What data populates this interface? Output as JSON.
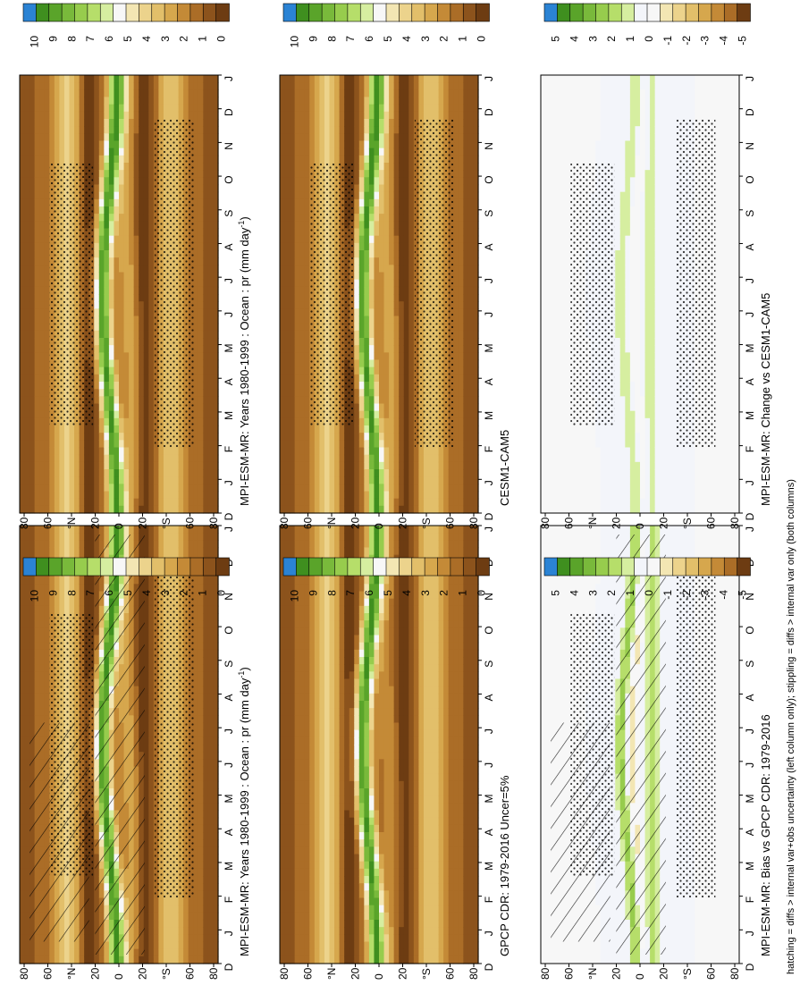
{
  "footnote": "hatching = diffs > internal var+obs uncertainty (left column only); stippling = diffs > internal var only (both columns)",
  "month_ticks": [
    "D",
    "J",
    "F",
    "M",
    "A",
    "M",
    "J",
    "J",
    "A",
    "S",
    "O",
    "N",
    "D",
    "J"
  ],
  "lat_ticks": [
    "80",
    "60",
    "°N",
    "20",
    "0",
    "20",
    "°S",
    "60",
    "80"
  ],
  "colorbar_abs": [
    "10",
    "9",
    "8",
    "7",
    "6",
    "5",
    "4",
    "3",
    "2",
    "1",
    "0"
  ],
  "colorbar_diff": [
    "5",
    "4",
    "3",
    "2",
    "1",
    "0",
    "-1",
    "-2",
    "-3",
    "-4",
    "-5"
  ],
  "colors_abs": [
    "#2b83d4",
    "#3f8f1f",
    "#5aa42a",
    "#79b93b",
    "#97cc4d",
    "#b6de6a",
    "#d6eea0",
    "#f7f7f7",
    "#f3e6b3",
    "#ecd38c",
    "#e2bf6a",
    "#d6a74d",
    "#c48a37",
    "#ab6d27",
    "#8c531c",
    "#6d3c12"
  ],
  "colors_diff": [
    "#2b83d4",
    "#3f8f1f",
    "#5aa42a",
    "#79b93b",
    "#97cc4d",
    "#b6de6a",
    "#d6eea0",
    "#f3f5fa",
    "#f7f7f7",
    "#f3e6b3",
    "#ecd38c",
    "#e2bf6a",
    "#d6a74d",
    "#c48a37",
    "#ab6d27",
    "#6d3c12"
  ],
  "panels": [
    {
      "id": "a",
      "title": "MPI-ESM-MR: Years 1980-1999 : Ocean : pr (mm day",
      "title_sup": "-1",
      "title_end": ")",
      "cbar": "abs",
      "hatch": true,
      "stipple": true
    },
    {
      "id": "b",
      "title": "MPI-ESM-MR: Years 1980-1999 : Ocean : pr (mm day",
      "title_sup": "-1",
      "title_end": ")",
      "cbar": "abs",
      "hatch": false,
      "stipple": true
    },
    {
      "id": "c",
      "title": "GPCP CDR: 1979-2016 Uncer=5%",
      "title_sup": "",
      "title_end": "",
      "cbar": "abs",
      "hatch": false,
      "stipple": false
    },
    {
      "id": "d",
      "title": "CESM1-CAM5",
      "title_sup": "",
      "title_end": "",
      "cbar": "abs",
      "hatch": false,
      "stipple": true
    },
    {
      "id": "e",
      "title": "MPI-ESM-MR: Bias vs GPCP CDR: 1979-2016",
      "title_sup": "",
      "title_end": "",
      "cbar": "diff",
      "hatch": true,
      "stipple": true
    },
    {
      "id": "f",
      "title": "MPI-ESM-MR: Change vs CESM1-CAM5",
      "title_sup": "",
      "title_end": "",
      "cbar": "diff",
      "hatch": false,
      "stipple": true
    }
  ],
  "chart_data": {
    "type": "heatmap",
    "description_axes": "x: month (D..J), y: latitude (80N..80S)",
    "colorbar_ranges": {
      "absolute": [
        0,
        10
      ],
      "difference": [
        -5,
        5
      ]
    }
  }
}
